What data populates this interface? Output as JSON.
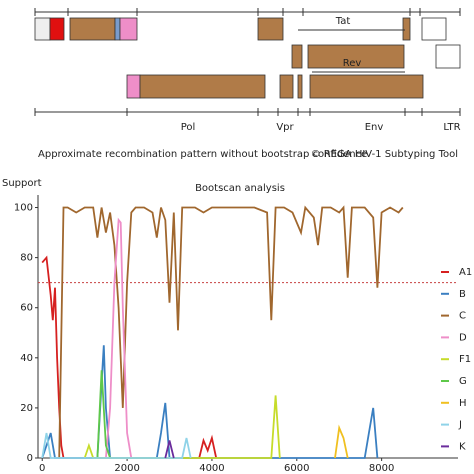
{
  "diagram": {
    "labels": [
      "Tat",
      "Rev",
      "Pol",
      "Vpr",
      "Env",
      "LTR"
    ],
    "caption": "Approximate recombination pattern without bootstrap confidence",
    "credit": "© REGA HIV-1 Subtyping Tool"
  },
  "chart_data": {
    "type": "line",
    "title": "Bootscan analysis",
    "y_label": "Support",
    "xlim": [
      -100,
      9800
    ],
    "xticks": [
      0,
      2000,
      4000,
      6000,
      8000
    ],
    "ylim": [
      0,
      105
    ],
    "yticks": [
      0,
      20,
      40,
      60,
      80,
      100
    ],
    "threshold": 70,
    "threshold_color": "#c84040",
    "legend": "right",
    "series": [
      {
        "name": "A1",
        "color": "#d62020",
        "x": [
          0,
          100,
          200,
          250,
          300,
          350,
          400,
          450,
          500,
          600,
          3700,
          3800,
          3900,
          4000,
          4100
        ],
        "values": [
          78,
          80,
          65,
          55,
          68,
          40,
          20,
          5,
          0,
          0,
          0,
          7,
          3,
          8,
          0
        ]
      },
      {
        "name": "B",
        "color": "#3a7fc1",
        "x": [
          0,
          100,
          200,
          300,
          1300,
          1400,
          1450,
          1500,
          1600,
          2700,
          2800,
          2900,
          3000,
          7600,
          7700,
          7800,
          7900
        ],
        "values": [
          0,
          5,
          10,
          0,
          0,
          30,
          45,
          20,
          0,
          0,
          10,
          22,
          0,
          0,
          10,
          20,
          0
        ]
      },
      {
        "name": "C",
        "color": "#a0672e",
        "x": [
          400,
          500,
          600,
          800,
          1000,
          1200,
          1300,
          1400,
          1500,
          1600,
          1700,
          1800,
          1900,
          2000,
          2100,
          2200,
          2400,
          2600,
          2700,
          2800,
          2900,
          3000,
          3100,
          3200,
          3300,
          3400,
          3600,
          3800,
          4000,
          4500,
          5000,
          5300,
          5400,
          5500,
          5600,
          5700,
          5900,
          6100,
          6200,
          6400,
          6500,
          6600,
          6800,
          7000,
          7100,
          7200,
          7300,
          7400,
          7600,
          7800,
          7900,
          8000,
          8200,
          8400,
          8500
        ],
        "values": [
          0,
          100,
          100,
          98,
          100,
          100,
          88,
          100,
          90,
          98,
          85,
          60,
          20,
          70,
          98,
          100,
          100,
          98,
          88,
          100,
          95,
          62,
          98,
          51,
          100,
          100,
          100,
          98,
          100,
          100,
          100,
          98,
          55,
          100,
          100,
          100,
          98,
          90,
          100,
          96,
          85,
          100,
          100,
          98,
          100,
          72,
          100,
          100,
          100,
          96,
          68,
          98,
          100,
          98,
          100
        ]
      },
      {
        "name": "D",
        "color": "#ee8ec8",
        "x": [
          1500,
          1600,
          1700,
          1800,
          1850,
          1900,
          2000,
          2100
        ],
        "values": [
          0,
          20,
          70,
          95,
          94,
          60,
          10,
          0
        ]
      },
      {
        "name": "F1",
        "color": "#c6dc2a",
        "x": [
          1000,
          1100,
          1200,
          5400,
          5500,
          5600
        ],
        "values": [
          0,
          5,
          0,
          0,
          25,
          0
        ]
      },
      {
        "name": "G",
        "color": "#5ec84a",
        "x": [
          1300,
          1400,
          1500,
          1600
        ],
        "values": [
          0,
          35,
          5,
          0
        ]
      },
      {
        "name": "H",
        "color": "#f0c020",
        "x": [
          6900,
          7000,
          7100,
          7200
        ],
        "values": [
          0,
          12,
          8,
          0
        ]
      },
      {
        "name": "J",
        "color": "#8fd3e8",
        "x": [
          0,
          100,
          200,
          3300,
          3400,
          3500
        ],
        "values": [
          0,
          10,
          0,
          0,
          8,
          0
        ]
      },
      {
        "name": "K",
        "color": "#6a2c9c",
        "x": [
          2900,
          3000,
          3100
        ],
        "values": [
          0,
          7,
          0
        ]
      }
    ]
  }
}
